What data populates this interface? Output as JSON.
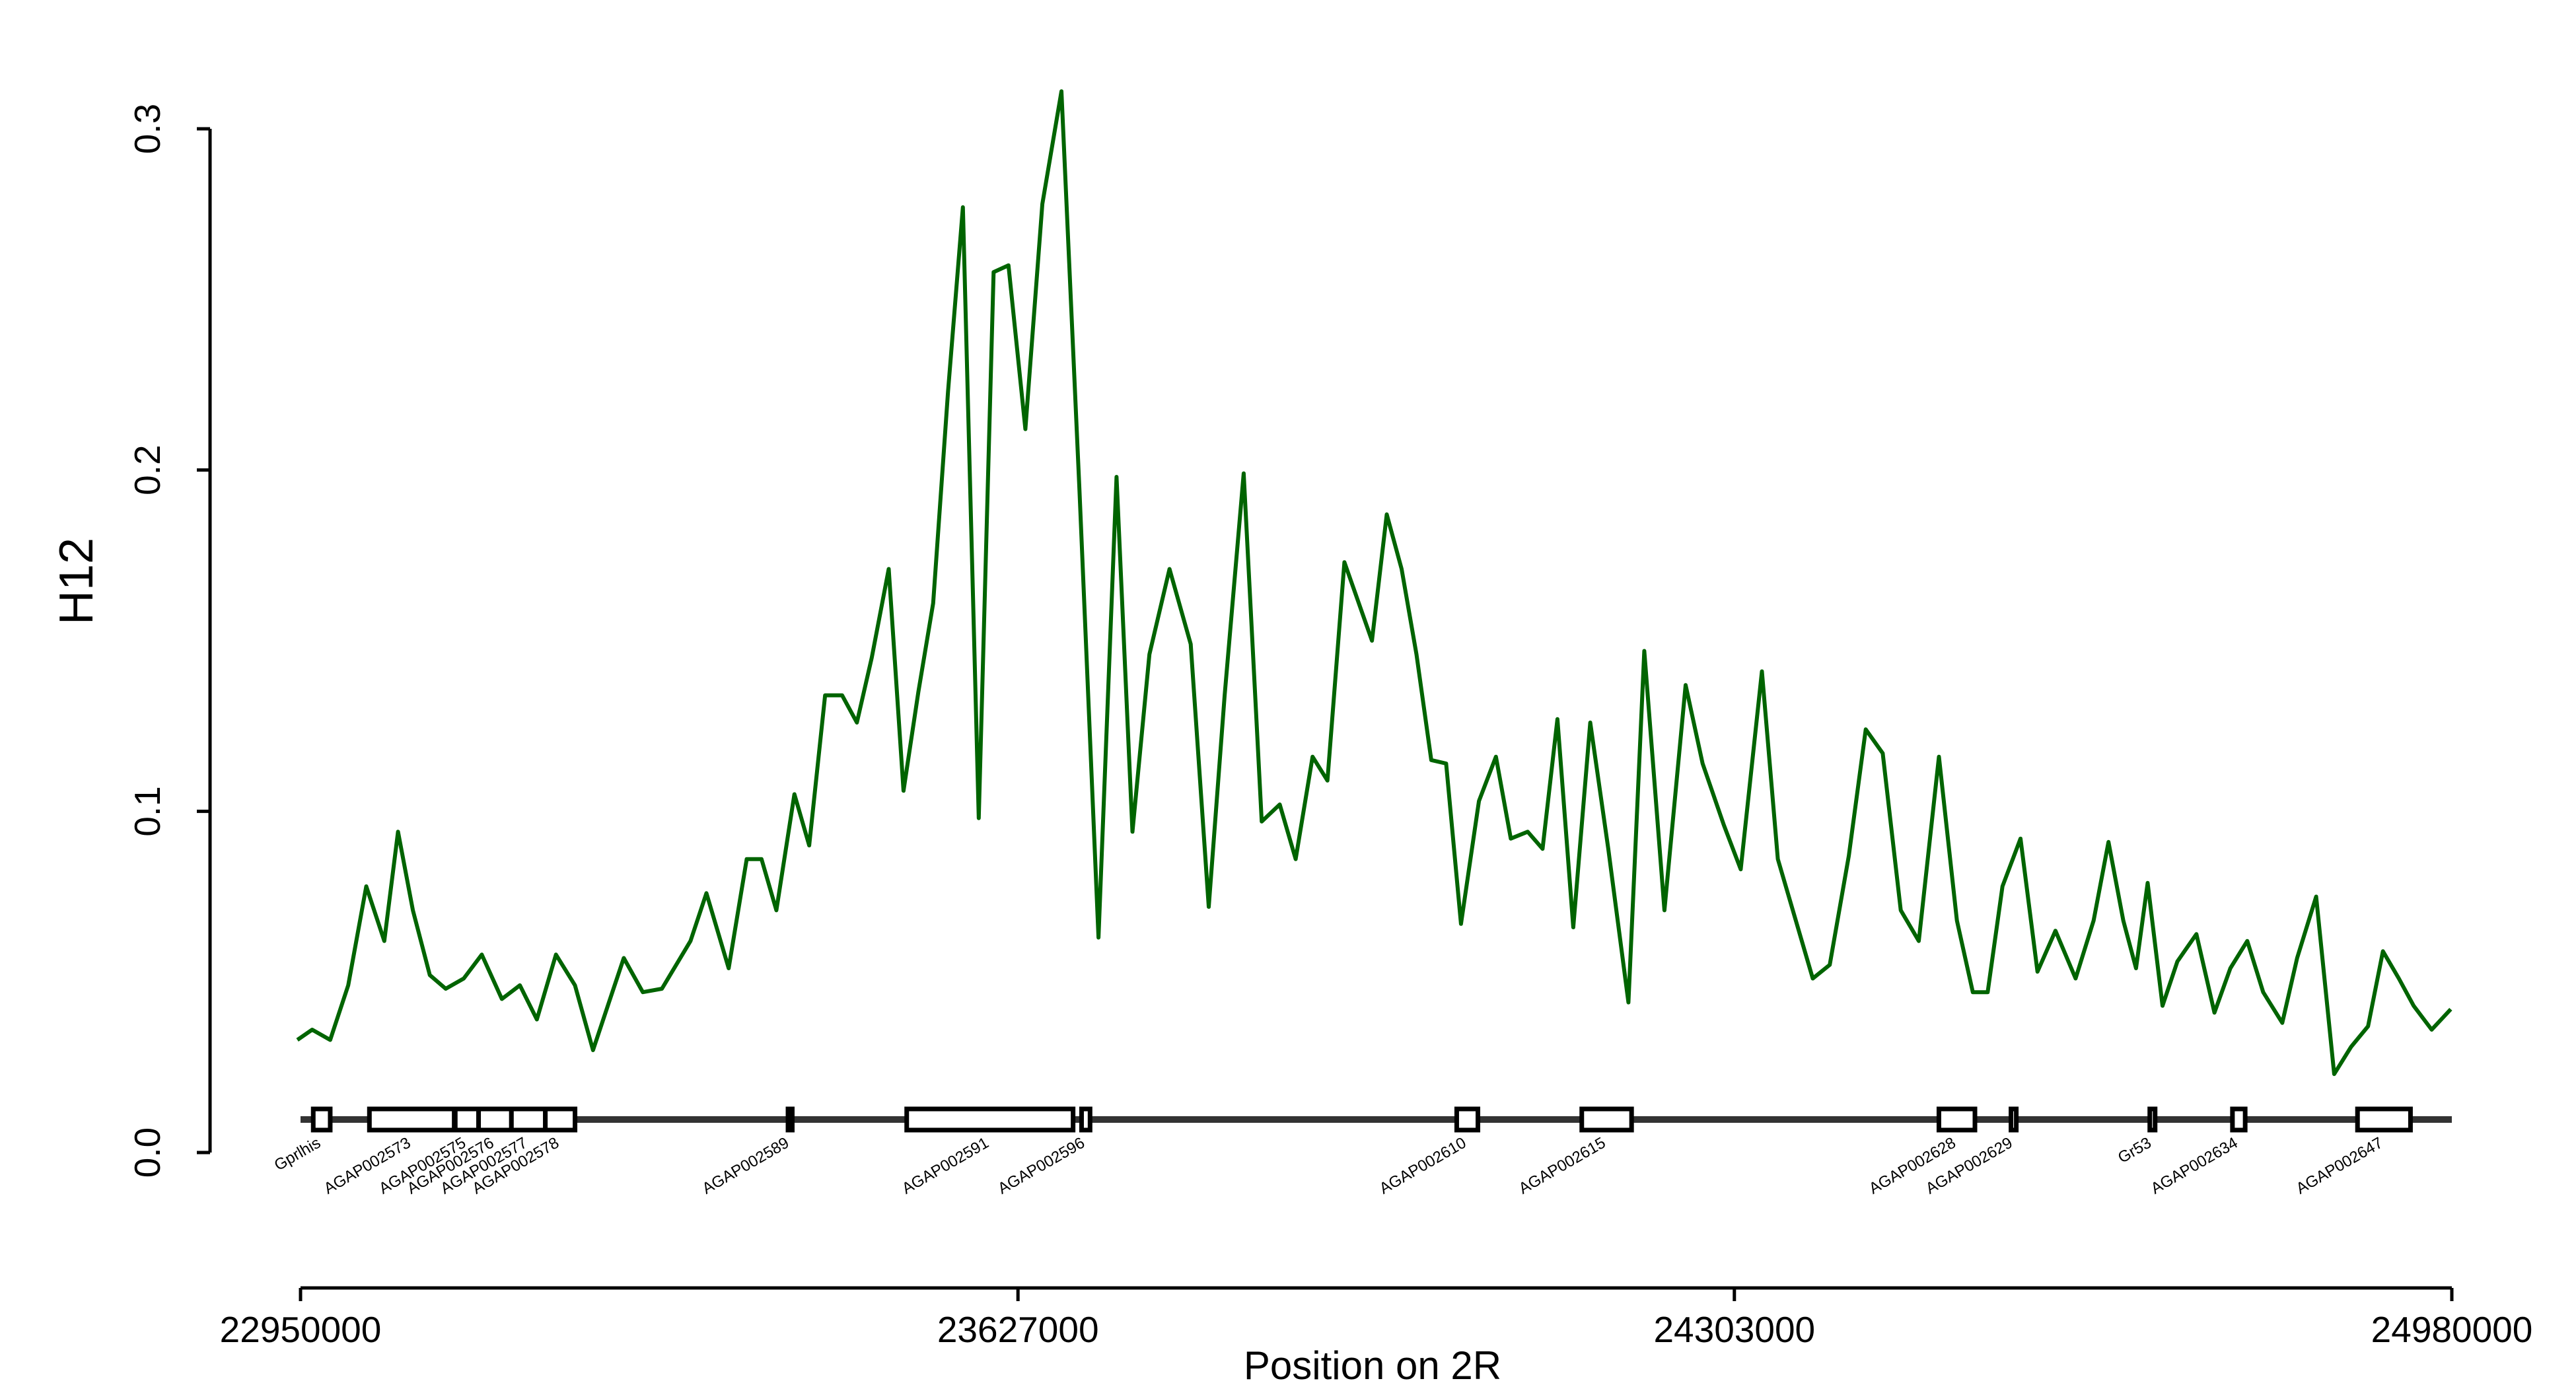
{
  "chart_data": {
    "type": "line",
    "xlabel": "Position on 2R",
    "ylabel": "H12",
    "color": "#006400",
    "xlim": [
      22950000,
      24980000
    ],
    "xticks": [
      22950000,
      23627000,
      24303000,
      24980000
    ],
    "ylim": [
      0,
      0.3
    ],
    "yticks": [
      {
        "value": 0,
        "label": "0.0"
      },
      0.1,
      0.2,
      0.3
    ],
    "x": [
      22947000,
      22961000,
      22978000,
      22995000,
      23012000,
      23029000,
      23042000,
      23056000,
      23072000,
      23087000,
      23104000,
      23121000,
      23140000,
      23157000,
      23173000,
      23191000,
      23209000,
      23226000,
      23241000,
      23255000,
      23273000,
      23291000,
      23318000,
      23333000,
      23354000,
      23371000,
      23385000,
      23399000,
      23416000,
      23430000,
      23445000,
      23461000,
      23475000,
      23489000,
      23505000,
      23519000,
      23533000,
      23547000,
      23561000,
      23575000,
      23590000,
      23604000,
      23618000,
      23634000,
      23650000,
      23668000,
      23685000,
      23703000,
      23720000,
      23735000,
      23751000,
      23770000,
      23790000,
      23807000,
      23822000,
      23840000,
      23857000,
      23874000,
      23889000,
      23905000,
      23919000,
      23935000,
      23961000,
      23975000,
      23989000,
      24003000,
      24017000,
      24031000,
      24045000,
      24062000,
      24078000,
      24092000,
      24108000,
      24122000,
      24136000,
      24151000,
      24167000,
      24184000,
      24203000,
      24218000,
      24237000,
      24257000,
      24273000,
      24293000,
      24309000,
      24329000,
      24344000,
      24360000,
      24377000,
      24393000,
      24411000,
      24427000,
      24443000,
      24460000,
      24477000,
      24496000,
      24513000,
      24528000,
      24542000,
      24556000,
      24573000,
      24589000,
      24606000,
      24625000,
      24642000,
      24656000,
      24670000,
      24682000,
      24693000,
      24707000,
      24721000,
      24739000,
      24756000,
      24771000,
      24787000,
      24802000,
      24820000,
      24834000,
      24852000,
      24869000,
      24885000,
      24901000,
      24915000,
      24930000,
      24944000,
      24961000,
      24979000
    ],
    "values": [
      0.033,
      0.036,
      0.033,
      0.049,
      0.078,
      0.062,
      0.094,
      0.071,
      0.052,
      0.048,
      0.051,
      0.058,
      0.045,
      0.049,
      0.039,
      0.058,
      0.049,
      0.03,
      0.044,
      0.057,
      0.047,
      0.048,
      0.062,
      0.076,
      0.054,
      0.086,
      0.086,
      0.071,
      0.105,
      0.09,
      0.134,
      0.134,
      0.126,
      0.145,
      0.171,
      0.106,
      0.135,
      0.161,
      0.223,
      0.277,
      0.098,
      0.258,
      0.26,
      0.212,
      0.278,
      0.311,
      0.194,
      0.063,
      0.198,
      0.094,
      0.146,
      0.171,
      0.149,
      0.072,
      0.134,
      0.199,
      0.097,
      0.102,
      0.086,
      0.116,
      0.109,
      0.173,
      0.15,
      0.187,
      0.171,
      0.146,
      0.115,
      0.114,
      0.067,
      0.103,
      0.116,
      0.092,
      0.094,
      0.089,
      0.127,
      0.066,
      0.126,
      0.089,
      0.044,
      0.147,
      0.071,
      0.137,
      0.114,
      0.096,
      0.083,
      0.141,
      0.086,
      0.069,
      0.051,
      0.055,
      0.087,
      0.124,
      0.117,
      0.071,
      0.062,
      0.116,
      0.068,
      0.047,
      0.047,
      0.078,
      0.092,
      0.053,
      0.065,
      0.051,
      0.068,
      0.091,
      0.068,
      0.054,
      0.079,
      0.043,
      0.056,
      0.064,
      0.041,
      0.054,
      0.062,
      0.047,
      0.038,
      0.057,
      0.075,
      0.023,
      0.031,
      0.037,
      0.059,
      0.051,
      0.043,
      0.036,
      0.042
    ],
    "genes": [
      {
        "name": "Gprlhis",
        "start": 22962000,
        "end": 22978000
      },
      {
        "name": "AGAP002573",
        "start": 23015000,
        "end": 23095000
      },
      {
        "name": "AGAP002575",
        "start": 23096000,
        "end": 23118000
      },
      {
        "name": "AGAP002576",
        "start": 23118000,
        "end": 23149000
      },
      {
        "name": "AGAP002577",
        "start": 23149000,
        "end": 23181000
      },
      {
        "name": "AGAP002578",
        "start": 23181000,
        "end": 23209000
      },
      {
        "name": "AGAP002589",
        "start": 23410000,
        "end": 23414000
      },
      {
        "name": "AGAP002591",
        "start": 23522000,
        "end": 23679000
      },
      {
        "name": "AGAP002596",
        "start": 23687000,
        "end": 23695000
      },
      {
        "name": "AGAP002610",
        "start": 24041000,
        "end": 24061000
      },
      {
        "name": "AGAP002615",
        "start": 24159000,
        "end": 24206000
      },
      {
        "name": "AGAP002628",
        "start": 24496000,
        "end": 24530000
      },
      {
        "name": "AGAP002629",
        "start": 24564000,
        "end": 24569000
      },
      {
        "name": "Gr53",
        "start": 24695000,
        "end": 24700000
      },
      {
        "name": "AGAP002634",
        "start": 24773000,
        "end": 24785000
      },
      {
        "name": "AGAP002647",
        "start": 24891000,
        "end": 24941000
      }
    ]
  }
}
